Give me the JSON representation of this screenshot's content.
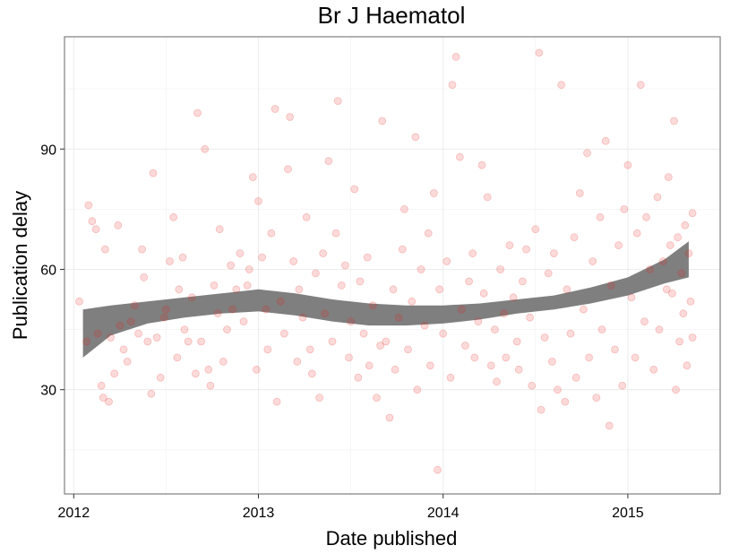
{
  "chart_data": {
    "type": "scatter",
    "title": "Br J Haematol",
    "xlabel": "Date published",
    "ylabel": "Publication delay",
    "xlim": [
      2011.95,
      2015.5
    ],
    "ylim": [
      4,
      118
    ],
    "x_ticks": [
      2012,
      2013,
      2014,
      2015
    ],
    "x_tick_labels": [
      "2012",
      "2013",
      "2014",
      "2015"
    ],
    "y_ticks": [
      30,
      60,
      90
    ],
    "y_tick_labels": [
      "30",
      "60",
      "90"
    ],
    "grid": true,
    "legend": "none",
    "colors": {
      "point": "#e8211b",
      "point_alpha": 0.17,
      "ribbon": "#7f7f7f",
      "grid": "#ececec",
      "border": "#7f7f7f"
    },
    "points": [
      [
        2012.03,
        52
      ],
      [
        2012.07,
        42
      ],
      [
        2012.08,
        76
      ],
      [
        2012.1,
        72
      ],
      [
        2012.12,
        70
      ],
      [
        2012.13,
        44
      ],
      [
        2012.15,
        31
      ],
      [
        2012.16,
        28
      ],
      [
        2012.17,
        65
      ],
      [
        2012.19,
        27
      ],
      [
        2012.2,
        43
      ],
      [
        2012.22,
        34
      ],
      [
        2012.24,
        71
      ],
      [
        2012.25,
        46
      ],
      [
        2012.27,
        40
      ],
      [
        2012.29,
        37
      ],
      [
        2012.31,
        47
      ],
      [
        2012.33,
        51
      ],
      [
        2012.35,
        44
      ],
      [
        2012.37,
        65
      ],
      [
        2012.38,
        58
      ],
      [
        2012.4,
        42
      ],
      [
        2012.42,
        29
      ],
      [
        2012.43,
        84
      ],
      [
        2012.45,
        43
      ],
      [
        2012.47,
        33
      ],
      [
        2012.49,
        48
      ],
      [
        2012.5,
        50
      ],
      [
        2012.52,
        62
      ],
      [
        2012.54,
        73
      ],
      [
        2012.56,
        38
      ],
      [
        2012.57,
        55
      ],
      [
        2012.59,
        63
      ],
      [
        2012.6,
        45
      ],
      [
        2012.62,
        42
      ],
      [
        2012.64,
        53
      ],
      [
        2012.66,
        34
      ],
      [
        2012.67,
        99
      ],
      [
        2012.69,
        42
      ],
      [
        2012.71,
        90
      ],
      [
        2012.73,
        35
      ],
      [
        2012.74,
        31
      ],
      [
        2012.76,
        56
      ],
      [
        2012.78,
        49
      ],
      [
        2012.79,
        70
      ],
      [
        2012.81,
        37
      ],
      [
        2012.83,
        45
      ],
      [
        2012.85,
        61
      ],
      [
        2012.86,
        50
      ],
      [
        2012.88,
        55
      ],
      [
        2012.9,
        64
      ],
      [
        2012.92,
        47
      ],
      [
        2012.94,
        56
      ],
      [
        2012.95,
        60
      ],
      [
        2012.97,
        83
      ],
      [
        2012.99,
        35
      ],
      [
        2013.0,
        77
      ],
      [
        2013.02,
        63
      ],
      [
        2013.04,
        50
      ],
      [
        2013.05,
        40
      ],
      [
        2013.07,
        69
      ],
      [
        2013.09,
        100
      ],
      [
        2013.1,
        27
      ],
      [
        2013.12,
        52
      ],
      [
        2013.14,
        44
      ],
      [
        2013.16,
        85
      ],
      [
        2013.17,
        98
      ],
      [
        2013.19,
        62
      ],
      [
        2013.21,
        37
      ],
      [
        2013.22,
        55
      ],
      [
        2013.24,
        48
      ],
      [
        2013.26,
        73
      ],
      [
        2013.28,
        40
      ],
      [
        2013.29,
        34
      ],
      [
        2013.31,
        59
      ],
      [
        2013.33,
        28
      ],
      [
        2013.35,
        64
      ],
      [
        2013.36,
        49
      ],
      [
        2013.38,
        87
      ],
      [
        2013.4,
        42
      ],
      [
        2013.42,
        69
      ],
      [
        2013.43,
        102
      ],
      [
        2013.45,
        56
      ],
      [
        2013.47,
        61
      ],
      [
        2013.49,
        38
      ],
      [
        2013.5,
        47
      ],
      [
        2013.52,
        80
      ],
      [
        2013.54,
        33
      ],
      [
        2013.55,
        57
      ],
      [
        2013.57,
        44
      ],
      [
        2013.59,
        63
      ],
      [
        2013.6,
        36
      ],
      [
        2013.62,
        51
      ],
      [
        2013.64,
        28
      ],
      [
        2013.66,
        41
      ],
      [
        2013.67,
        97
      ],
      [
        2013.69,
        42
      ],
      [
        2013.71,
        23
      ],
      [
        2013.73,
        55
      ],
      [
        2013.74,
        35
      ],
      [
        2013.76,
        48
      ],
      [
        2013.78,
        65
      ],
      [
        2013.79,
        75
      ],
      [
        2013.81,
        40
      ],
      [
        2013.83,
        52
      ],
      [
        2013.85,
        93
      ],
      [
        2013.86,
        30
      ],
      [
        2013.88,
        60
      ],
      [
        2013.9,
        46
      ],
      [
        2013.92,
        69
      ],
      [
        2013.93,
        36
      ],
      [
        2013.95,
        79
      ],
      [
        2013.97,
        10
      ],
      [
        2013.98,
        55
      ],
      [
        2014.0,
        44
      ],
      [
        2014.02,
        62
      ],
      [
        2014.04,
        33
      ],
      [
        2014.05,
        106
      ],
      [
        2014.07,
        113
      ],
      [
        2014.09,
        88
      ],
      [
        2014.1,
        50
      ],
      [
        2014.12,
        41
      ],
      [
        2014.14,
        57
      ],
      [
        2014.16,
        64
      ],
      [
        2014.17,
        38
      ],
      [
        2014.19,
        47
      ],
      [
        2014.21,
        86
      ],
      [
        2014.22,
        54
      ],
      [
        2014.24,
        78
      ],
      [
        2014.26,
        36
      ],
      [
        2014.28,
        45
      ],
      [
        2014.29,
        32
      ],
      [
        2014.31,
        60
      ],
      [
        2014.33,
        49
      ],
      [
        2014.34,
        38
      ],
      [
        2014.36,
        66
      ],
      [
        2014.38,
        53
      ],
      [
        2014.4,
        42
      ],
      [
        2014.41,
        35
      ],
      [
        2014.43,
        57
      ],
      [
        2014.45,
        65
      ],
      [
        2014.47,
        48
      ],
      [
        2014.48,
        31
      ],
      [
        2014.5,
        70
      ],
      [
        2014.52,
        114
      ],
      [
        2014.53,
        25
      ],
      [
        2014.55,
        43
      ],
      [
        2014.57,
        59
      ],
      [
        2014.59,
        37
      ],
      [
        2014.6,
        64
      ],
      [
        2014.62,
        30
      ],
      [
        2014.64,
        106
      ],
      [
        2014.66,
        27
      ],
      [
        2014.67,
        55
      ],
      [
        2014.69,
        44
      ],
      [
        2014.71,
        68
      ],
      [
        2014.72,
        33
      ],
      [
        2014.74,
        79
      ],
      [
        2014.76,
        50
      ],
      [
        2014.78,
        89
      ],
      [
        2014.79,
        38
      ],
      [
        2014.81,
        62
      ],
      [
        2014.83,
        28
      ],
      [
        2014.85,
        73
      ],
      [
        2014.86,
        45
      ],
      [
        2014.88,
        92
      ],
      [
        2014.9,
        21
      ],
      [
        2014.91,
        56
      ],
      [
        2014.93,
        40
      ],
      [
        2014.95,
        66
      ],
      [
        2014.97,
        31
      ],
      [
        2014.98,
        75
      ],
      [
        2015.0,
        86
      ],
      [
        2015.02,
        53
      ],
      [
        2015.04,
        38
      ],
      [
        2015.05,
        69
      ],
      [
        2015.07,
        106
      ],
      [
        2015.09,
        47
      ],
      [
        2015.1,
        73
      ],
      [
        2015.12,
        60
      ],
      [
        2015.14,
        35
      ],
      [
        2015.16,
        78
      ],
      [
        2015.17,
        45
      ],
      [
        2015.19,
        62
      ],
      [
        2015.21,
        55
      ],
      [
        2015.22,
        83
      ],
      [
        2015.23,
        66
      ],
      [
        2015.24,
        54
      ],
      [
        2015.25,
        97
      ],
      [
        2015.26,
        30
      ],
      [
        2015.27,
        68
      ],
      [
        2015.28,
        42
      ],
      [
        2015.29,
        59
      ],
      [
        2015.3,
        49
      ],
      [
        2015.31,
        71
      ],
      [
        2015.32,
        36
      ],
      [
        2015.33,
        64
      ],
      [
        2015.34,
        52
      ],
      [
        2015.35,
        74
      ],
      [
        2015.35,
        43
      ]
    ],
    "smooth_band": {
      "x": [
        2012.05,
        2012.2,
        2012.4,
        2012.6,
        2012.8,
        2013.0,
        2013.2,
        2013.4,
        2013.6,
        2013.8,
        2014.0,
        2014.2,
        2014.4,
        2014.6,
        2014.8,
        2015.0,
        2015.2,
        2015.33
      ],
      "lower": [
        38,
        43.5,
        46.5,
        48,
        49,
        49.5,
        48.5,
        47,
        46,
        46,
        46.5,
        47.5,
        49,
        50,
        51.5,
        53.5,
        56.5,
        58
      ],
      "upper": [
        50,
        51,
        52,
        53,
        54,
        55,
        54,
        52.5,
        51.5,
        51,
        51,
        51.5,
        52.5,
        53.5,
        55.5,
        58,
        62.5,
        67
      ]
    }
  }
}
